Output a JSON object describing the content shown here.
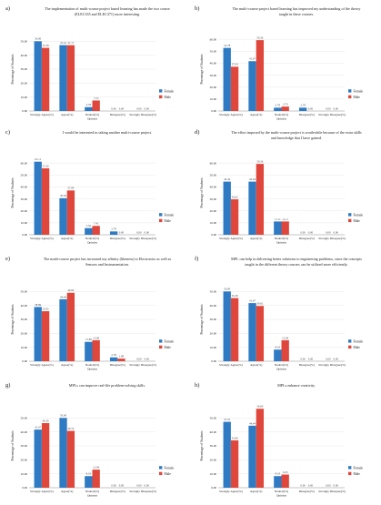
{
  "colors": {
    "female": "#2e7bc4",
    "male": "#e0473c",
    "axis": "#999999",
    "grid": "#e2e2e2",
    "text": "#222222",
    "value": "#444444"
  },
  "chart_data": [
    {
      "type": "bar",
      "panel": "a)",
      "title": [
        "The implementation of multi-course project based learning has made the two course",
        "(ELEC335 and ELEC371) more interesting."
      ],
      "categories": [
        "Strongly Agree(%)",
        "Agree(%)",
        "Neutral(%)\nOpinion",
        "Disagree(%)",
        "Strongly Disagree(%)"
      ],
      "ylabel": "Percentage of Students",
      "ylim": [
        0,
        60
      ],
      "yticks": [
        0,
        10,
        20,
        30,
        40,
        50
      ],
      "legend": "right",
      "series": [
        {
          "name": "Female",
          "values": [
            50.0,
            47.22,
            2.78,
            0.0,
            0.0
          ],
          "labels": [
            "50.00",
            "47.22",
            "2.78",
            "0.00",
            "0.00"
          ]
        },
        {
          "name": "Male",
          "values": [
            45.28,
            47.17,
            7.55,
            0.0,
            0.0
          ],
          "labels": [
            "45.28",
            "47.17",
            "7.55",
            "0.00",
            "0.00"
          ]
        }
      ]
    },
    {
      "type": "bar",
      "panel": "b)",
      "title": [
        "The multi-course project based learning has improved my understanding of the theory",
        "taught in these courses."
      ],
      "categories": [
        "Strongly Agree(%)",
        "Agree(%)",
        "Neutral(%)\nOpinion",
        "Disagree(%)",
        "Strongly Disagree(%)"
      ],
      "ylabel": "Percentage of Students",
      "ylim": [
        0,
        70
      ],
      "yticks": [
        0,
        10,
        20,
        30,
        40,
        50,
        60
      ],
      "legend": "right",
      "series": [
        {
          "name": "Female",
          "values": [
            52.78,
            41.67,
            2.78,
            2.78,
            0.0
          ],
          "labels": [
            "52.78",
            "41.67",
            "2.78",
            "2.78",
            "0.00"
          ]
        },
        {
          "name": "Male",
          "values": [
            37.04,
            59.26,
            3.7,
            0.0,
            0.0
          ],
          "labels": [
            "37.04",
            "59.26",
            "3.70",
            "0.00",
            "0.00"
          ]
        }
      ]
    },
    {
      "type": "bar",
      "panel": "c)",
      "title": [
        "I would be interested in taking another multi-course project."
      ],
      "categories": [
        "Strongly Agree(%)",
        "Agree(%)",
        "Neutral(%)\nOpinion",
        "Disagree(%)",
        "Strongly Disagree(%)"
      ],
      "ylabel": "Percentage of Students",
      "ylim": [
        0,
        70
      ],
      "yticks": [
        0,
        10,
        20,
        30,
        40,
        50,
        60
      ],
      "legend": "right",
      "series": [
        {
          "name": "Female",
          "values": [
            61.11,
            30.56,
            5.56,
            2.78,
            0.0
          ],
          "labels": [
            "61.11",
            "30.56",
            "5.56",
            "2.78",
            "0.00"
          ]
        },
        {
          "name": "Male",
          "values": [
            55.56,
            37.04,
            7.41,
            0.0,
            0.0
          ],
          "labels": [
            "55.56",
            "37.04",
            "7.41",
            "0.00",
            "0.00"
          ]
        }
      ]
    },
    {
      "type": "bar",
      "panel": "d)",
      "title": [
        "The effort imposed by the multi-course project is worthwhile because of the extra skills",
        "and knowledge that I have gained."
      ],
      "categories": [
        "Strongly Agree(%)",
        "Agree(%)",
        "Neutral(%)\nOpinion",
        "Disagree(%)",
        "Strongly Disagree(%)"
      ],
      "ylabel": "Percentage of Students",
      "ylim": [
        0,
        70
      ],
      "yticks": [
        0,
        10,
        20,
        30,
        40,
        50,
        60
      ],
      "legend": "right",
      "series": [
        {
          "name": "Female",
          "values": [
            44.44,
            44.44,
            11.11,
            0.0,
            0.0
          ],
          "labels": [
            "44.44",
            "44.44",
            "11.11",
            "0.00",
            "0.00"
          ]
        },
        {
          "name": "Male",
          "values": [
            29.63,
            59.26,
            11.11,
            0.0,
            0.0
          ],
          "labels": [
            "29.63",
            "59.26",
            "11.11",
            "0.00",
            "0.00"
          ]
        }
      ]
    },
    {
      "type": "bar",
      "panel": "e)",
      "title": [
        "The multi-course project has increased my affinity (likeness) to Electronics as well as",
        "Sensors and Instrumentation."
      ],
      "categories": [
        "Strongly Agree(%)",
        "Agree(%)",
        "Neutral(%)\nOpinion",
        "Disagree(%)",
        "Strongly Disagree(%)"
      ],
      "ylabel": "Percentage of Students",
      "ylim": [
        0,
        60
      ],
      "yticks": [
        0,
        10,
        20,
        30,
        40,
        50
      ],
      "legend": "right",
      "series": [
        {
          "name": "Female",
          "values": [
            38.89,
            44.44,
            13.89,
            2.78,
            0.0
          ],
          "labels": [
            "38.89",
            "44.44",
            "13.89",
            "2.78",
            "0.00"
          ]
        },
        {
          "name": "Male",
          "values": [
            35.85,
            49.06,
            15.09,
            1.89,
            0.0
          ],
          "labels": [
            "35.85",
            "49.06",
            "15.09",
            "1.89",
            "0.00"
          ]
        }
      ]
    },
    {
      "type": "bar",
      "panel": "f)",
      "title": [
        "MPL can help in delivering better solutions to engineering problems,  since the concepts",
        "taught in the different theory courses can be utilized more efficiently."
      ],
      "categories": [
        "Strongly Agree(%)",
        "Agree(%)",
        "Neutral(%)\nOpinion",
        "Disagree(%)",
        "Strongly Disagree(%)"
      ],
      "ylabel": "Percentage of Students",
      "ylim": [
        0,
        60
      ],
      "yticks": [
        0,
        10,
        20,
        30,
        40,
        50
      ],
      "legend": "right",
      "series": [
        {
          "name": "Female",
          "values": [
            50.0,
            41.67,
            8.33,
            0.0,
            0.0
          ],
          "labels": [
            "50.00",
            "41.67",
            "8.33",
            "0.00",
            "0.00"
          ]
        },
        {
          "name": "Male",
          "values": [
            45.28,
            39.62,
            15.09,
            0.0,
            0.0
          ],
          "labels": [
            "45.28",
            "39.62",
            "15.09",
            "0.00",
            "0.00"
          ]
        }
      ]
    },
    {
      "type": "bar",
      "panel": "g)",
      "title": [
        "MPLs can improve real-life problem-solving skills."
      ],
      "categories": [
        "Strongly Agree(%)",
        "Agree(%)",
        "Neutral(%)\nOpinion",
        "Disagree(%)",
        "Strongly Disagree(%)"
      ],
      "ylabel": "Percentage of Students",
      "ylim": [
        0,
        60
      ],
      "yticks": [
        0,
        10,
        20,
        30,
        40,
        50
      ],
      "legend": "right",
      "series": [
        {
          "name": "Female",
          "values": [
            41.67,
            50.0,
            8.33,
            0.0,
            0.0
          ],
          "labels": [
            "41.67",
            "50.00",
            "8.33",
            "0.00",
            "0.00"
          ]
        },
        {
          "name": "Male",
          "values": [
            46.3,
            40.74,
            12.96,
            0.0,
            0.0
          ],
          "labels": [
            "46.30",
            "40.74",
            "12.96",
            "0.00",
            "0.00"
          ]
        }
      ]
    },
    {
      "type": "bar",
      "panel": "h)",
      "title": [
        "MPLs enhance creativity."
      ],
      "categories": [
        "Strongly Agree(%)",
        "Agree(%)",
        "Neutral(%)\nOpinion",
        "Disagree(%)",
        "Strongly Disagree(%)"
      ],
      "ylabel": "Percentage of Students",
      "ylim": [
        0,
        60
      ],
      "yticks": [
        0,
        10,
        20,
        30,
        40,
        50
      ],
      "legend": "right",
      "series": [
        {
          "name": "Female",
          "values": [
            47.22,
            44.44,
            8.33,
            0.0,
            0.0
          ],
          "labels": [
            "47.22",
            "44.44",
            "8.33",
            "0.00",
            "0.00"
          ]
        },
        {
          "name": "Male",
          "values": [
            33.96,
            56.6,
            9.43,
            0.0,
            0.0
          ],
          "labels": [
            "33.96",
            "56.60",
            "9.43",
            "0.00",
            "0.00"
          ]
        }
      ]
    }
  ]
}
